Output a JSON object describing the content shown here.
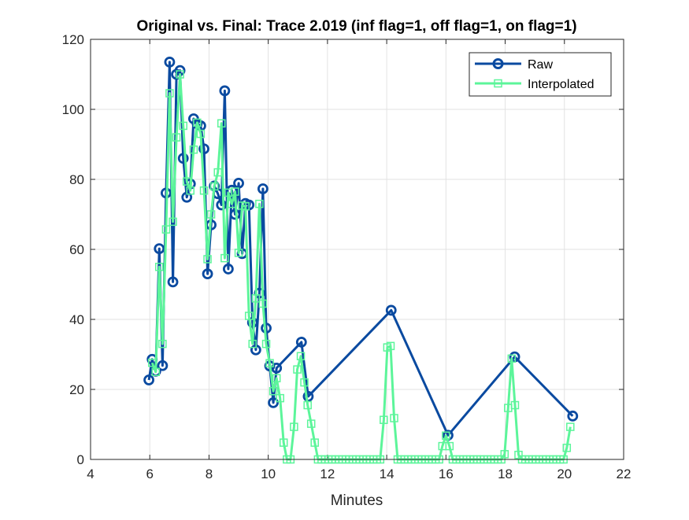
{
  "chart_data": {
    "type": "line",
    "title": "Original vs. Final: Trace 2.019 (inf flag=1, off flag=1, on flag=1)",
    "xlabel": "Minutes",
    "ylabel": "",
    "xlim": [
      4,
      22
    ],
    "ylim": [
      0,
      120
    ],
    "xticks": [
      4,
      6,
      8,
      10,
      12,
      14,
      16,
      18,
      20,
      22
    ],
    "yticks": [
      0,
      20,
      40,
      60,
      80,
      100,
      120
    ],
    "grid": true,
    "legend_position": "top-right",
    "series": [
      {
        "name": "Raw",
        "color": "#0a4aa0",
        "marker": "circle",
        "points": [
          [
            5.97,
            22.7
          ],
          [
            6.08,
            28.6
          ],
          [
            6.2,
            25.2
          ],
          [
            6.32,
            60.2
          ],
          [
            6.43,
            26.8
          ],
          [
            6.55,
            76.1
          ],
          [
            6.67,
            113.5
          ],
          [
            6.78,
            50.7
          ],
          [
            6.9,
            110.0
          ],
          [
            7.02,
            111.1
          ],
          [
            7.13,
            86.0
          ],
          [
            7.25,
            74.9
          ],
          [
            7.37,
            78.7
          ],
          [
            7.48,
            97.3
          ],
          [
            7.6,
            95.9
          ],
          [
            7.72,
            95.3
          ],
          [
            7.83,
            88.7
          ],
          [
            7.95,
            53.0
          ],
          [
            8.07,
            67.0
          ],
          [
            8.18,
            78.1
          ],
          [
            8.3,
            75.9
          ],
          [
            8.42,
            72.7
          ],
          [
            8.53,
            105.3
          ],
          [
            8.65,
            54.4
          ],
          [
            8.77,
            76.9
          ],
          [
            8.88,
            70.0
          ],
          [
            9.0,
            78.9
          ],
          [
            9.12,
            58.8
          ],
          [
            9.23,
            73.1
          ],
          [
            9.35,
            72.7
          ],
          [
            9.47,
            39.1
          ],
          [
            9.58,
            31.3
          ],
          [
            9.7,
            47.5
          ],
          [
            9.82,
            77.3
          ],
          [
            9.93,
            37.5
          ],
          [
            10.05,
            26.7
          ],
          [
            10.17,
            16.2
          ],
          [
            10.28,
            26.1
          ],
          [
            11.12,
            33.5
          ],
          [
            11.35,
            18.0
          ],
          [
            14.15,
            42.6
          ],
          [
            16.07,
            6.9
          ],
          [
            18.32,
            29.3
          ],
          [
            20.28,
            12.4
          ]
        ]
      },
      {
        "name": "Interpolated",
        "color": "#5cf59a",
        "marker": "square",
        "points": [
          [
            6.08,
            27.6
          ],
          [
            6.2,
            25.0
          ],
          [
            6.32,
            55.0
          ],
          [
            6.43,
            33.0
          ],
          [
            6.55,
            65.7
          ],
          [
            6.67,
            104.6
          ],
          [
            6.78,
            67.9
          ],
          [
            6.9,
            92.0
          ],
          [
            7.02,
            110.0
          ],
          [
            7.13,
            95.3
          ],
          [
            7.25,
            79.4
          ],
          [
            7.37,
            76.8
          ],
          [
            7.48,
            88.5
          ],
          [
            7.6,
            96.2
          ],
          [
            7.72,
            93.0
          ],
          [
            7.83,
            76.8
          ],
          [
            7.95,
            57.2
          ],
          [
            8.07,
            70.0
          ],
          [
            8.18,
            78.0
          ],
          [
            8.3,
            82.0
          ],
          [
            8.42,
            96.0
          ],
          [
            8.53,
            57.5
          ],
          [
            8.65,
            76.2
          ],
          [
            8.77,
            73.0
          ],
          [
            8.88,
            76.5
          ],
          [
            9.0,
            59.0
          ],
          [
            9.12,
            72.5
          ],
          [
            9.23,
            72.3
          ],
          [
            9.35,
            41.0
          ],
          [
            9.47,
            33.0
          ],
          [
            9.58,
            46.0
          ],
          [
            9.7,
            73.0
          ],
          [
            9.82,
            44.5
          ],
          [
            9.93,
            33.0
          ],
          [
            10.05,
            27.5
          ],
          [
            10.17,
            19.5
          ],
          [
            10.28,
            23.2
          ],
          [
            10.4,
            17.5
          ],
          [
            10.52,
            4.8
          ],
          [
            10.63,
            0.0
          ],
          [
            10.75,
            0.0
          ],
          [
            10.87,
            9.3
          ],
          [
            10.98,
            25.7
          ],
          [
            11.1,
            29.5
          ],
          [
            11.22,
            22.0
          ],
          [
            11.33,
            15.5
          ],
          [
            11.45,
            10.2
          ],
          [
            11.57,
            4.8
          ],
          [
            11.68,
            0.0
          ],
          [
            11.8,
            0.0
          ],
          [
            11.92,
            0.0
          ],
          [
            12.03,
            0.0
          ],
          [
            12.15,
            0.0
          ],
          [
            12.27,
            0.0
          ],
          [
            12.38,
            0.0
          ],
          [
            12.5,
            0.0
          ],
          [
            12.62,
            0.0
          ],
          [
            12.73,
            0.0
          ],
          [
            12.85,
            0.0
          ],
          [
            12.97,
            0.0
          ],
          [
            13.08,
            0.0
          ],
          [
            13.2,
            0.0
          ],
          [
            13.32,
            0.0
          ],
          [
            13.43,
            0.0
          ],
          [
            13.55,
            0.0
          ],
          [
            13.67,
            0.0
          ],
          [
            13.78,
            0.0
          ],
          [
            13.9,
            11.3
          ],
          [
            14.02,
            32.0
          ],
          [
            14.13,
            32.4
          ],
          [
            14.25,
            11.8
          ],
          [
            14.37,
            0.0
          ],
          [
            14.48,
            0.0
          ],
          [
            14.6,
            0.0
          ],
          [
            14.72,
            0.0
          ],
          [
            14.83,
            0.0
          ],
          [
            14.95,
            0.0
          ],
          [
            15.07,
            0.0
          ],
          [
            15.18,
            0.0
          ],
          [
            15.3,
            0.0
          ],
          [
            15.42,
            0.0
          ],
          [
            15.53,
            0.0
          ],
          [
            15.65,
            0.0
          ],
          [
            15.77,
            0.0
          ],
          [
            15.88,
            3.8
          ],
          [
            16.0,
            6.8
          ],
          [
            16.12,
            3.8
          ],
          [
            16.23,
            0.0
          ],
          [
            16.35,
            0.0
          ],
          [
            16.47,
            0.0
          ],
          [
            16.58,
            0.0
          ],
          [
            16.7,
            0.0
          ],
          [
            16.82,
            0.0
          ],
          [
            16.93,
            0.0
          ],
          [
            17.05,
            0.0
          ],
          [
            17.17,
            0.0
          ],
          [
            17.28,
            0.0
          ],
          [
            17.4,
            0.0
          ],
          [
            17.52,
            0.0
          ],
          [
            17.63,
            0.0
          ],
          [
            17.75,
            0.0
          ],
          [
            17.87,
            0.0
          ],
          [
            17.98,
            1.5
          ],
          [
            18.1,
            14.7
          ],
          [
            18.22,
            28.8
          ],
          [
            18.33,
            15.5
          ],
          [
            18.45,
            1.3
          ],
          [
            18.57,
            0.0
          ],
          [
            18.68,
            0.0
          ],
          [
            18.8,
            0.0
          ],
          [
            18.92,
            0.0
          ],
          [
            19.03,
            0.0
          ],
          [
            19.15,
            0.0
          ],
          [
            19.27,
            0.0
          ],
          [
            19.38,
            0.0
          ],
          [
            19.5,
            0.0
          ],
          [
            19.62,
            0.0
          ],
          [
            19.73,
            0.0
          ],
          [
            19.85,
            0.0
          ],
          [
            19.97,
            0.0
          ],
          [
            20.08,
            3.3
          ],
          [
            20.2,
            9.3
          ]
        ]
      }
    ]
  }
}
